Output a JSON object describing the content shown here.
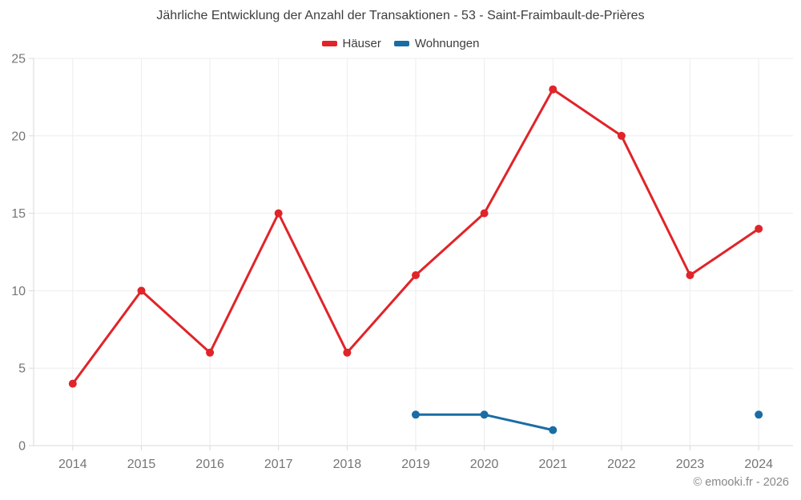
{
  "title": "Jährliche Entwicklung der Anzahl der Transaktionen - 53 - Saint-Fraimbault-de-Prières",
  "footer": {
    "copyright": "© emooki.fr - 2026"
  },
  "chart_data": {
    "type": "line",
    "title": "Jährliche Entwicklung der Anzahl der Transaktionen - 53 - Saint-Fraimbault-de-Prières",
    "categories": [
      "2014",
      "2015",
      "2016",
      "2017",
      "2018",
      "2019",
      "2020",
      "2021",
      "2022",
      "2023",
      "2024"
    ],
    "series": [
      {
        "name": "Häuser",
        "color": "#e02429",
        "values": [
          4,
          10,
          6,
          15,
          6,
          11,
          15,
          23,
          20,
          11,
          14
        ]
      },
      {
        "name": "Wohnungen",
        "color": "#1a6ca5",
        "values": [
          null,
          null,
          null,
          null,
          null,
          2,
          2,
          1,
          null,
          null,
          2
        ]
      }
    ],
    "xlabel": "",
    "ylabel": "",
    "ylim": [
      0,
      25
    ],
    "yticks": [
      0,
      5,
      10,
      15,
      20,
      25
    ],
    "grid": true,
    "legend_position": "top"
  }
}
